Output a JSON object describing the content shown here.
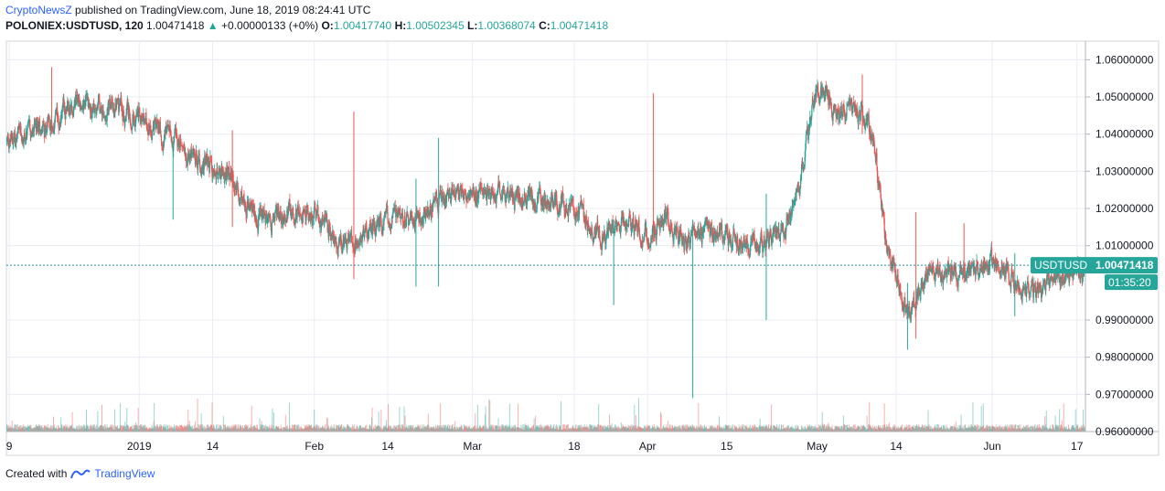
{
  "header": {
    "publisher": "CryptoNewsZ",
    "published_text": "published on TradingView.com, June 18, 2019 08:24:41 UTC",
    "symbol": "POLONIEX:USDTUSD, 120",
    "last": "1.00471418",
    "change": "+0.00000133 (+0%)",
    "open_label": "O:",
    "open": "1.00417740",
    "high_label": "H:",
    "high": "1.00502345",
    "low_label": "L:",
    "low": "1.00368074",
    "close_label": "C:",
    "close": "1.00471418"
  },
  "price_tag": {
    "symbol": "USDTUSD",
    "value": "1.00471418",
    "countdown": "01:35:20"
  },
  "footer": {
    "created_with": "Created with",
    "brand": "TradingView"
  },
  "colors": {
    "up": "#26a69a",
    "down": "#ef5350",
    "grid": "#e9ecf2",
    "axis_text": "#131722",
    "price_line": "#2196a8",
    "tag_bg": "#26a69a"
  },
  "chart_data": {
    "type": "candlestick",
    "ylim": [
      0.96,
      1.065
    ],
    "y_ticks": [
      "1.06000000",
      "1.05000000",
      "1.04000000",
      "1.03000000",
      "1.02000000",
      "1.01000000",
      "0.99000000",
      "0.98000000",
      "0.97000000",
      "0.96000000"
    ],
    "y_tick_values": [
      1.06,
      1.05,
      1.04,
      1.03,
      1.02,
      1.01,
      0.99,
      0.98,
      0.97,
      0.96
    ],
    "x_ticks": [
      "9",
      "2019",
      "14",
      "Feb",
      "14",
      "Mar",
      "18",
      "Apr",
      "15",
      "May",
      "14",
      "Jun",
      "17"
    ],
    "x_tick_days": [
      8,
      31,
      44,
      62,
      75,
      90,
      108,
      121,
      135,
      151,
      165,
      182,
      197
    ],
    "x_range_days": [
      7.5,
      198.5
    ],
    "last_price": 1.00471418,
    "trend": [
      [
        7.5,
        1.038
      ],
      [
        12,
        1.04
      ],
      [
        17,
        1.045
      ],
      [
        20,
        1.05
      ],
      [
        24,
        1.046
      ],
      [
        27,
        1.048
      ],
      [
        31,
        1.044
      ],
      [
        35,
        1.041
      ],
      [
        39,
        1.036
      ],
      [
        43,
        1.032
      ],
      [
        47,
        1.028
      ],
      [
        50,
        1.02
      ],
      [
        53,
        1.016
      ],
      [
        56,
        1.018
      ],
      [
        60,
        1.02
      ],
      [
        63,
        1.016
      ],
      [
        66,
        1.01
      ],
      [
        70,
        1.012
      ],
      [
        74,
        1.016
      ],
      [
        78,
        1.018
      ],
      [
        82,
        1.02
      ],
      [
        86,
        1.022
      ],
      [
        90,
        1.024
      ],
      [
        94,
        1.025
      ],
      [
        98,
        1.023
      ],
      [
        102,
        1.021
      ],
      [
        106,
        1.022
      ],
      [
        109,
        1.019
      ],
      [
        111,
        1.014
      ],
      [
        113,
        1.012
      ],
      [
        116,
        1.017
      ],
      [
        119,
        1.015
      ],
      [
        121,
        1.012
      ],
      [
        124,
        1.018
      ],
      [
        127,
        1.011
      ],
      [
        131,
        1.013
      ],
      [
        135,
        1.012
      ],
      [
        139,
        1.01
      ],
      [
        142,
        1.012
      ],
      [
        145,
        1.014
      ],
      [
        148,
        1.028
      ],
      [
        150,
        1.048
      ],
      [
        152,
        1.052
      ],
      [
        154,
        1.045
      ],
      [
        157,
        1.047
      ],
      [
        159,
        1.045
      ],
      [
        161,
        1.036
      ],
      [
        163,
        1.012
      ],
      [
        165,
        1.0
      ],
      [
        167,
        0.992
      ],
      [
        169,
        0.998
      ],
      [
        171,
        1.005
      ],
      [
        174,
        1.003
      ],
      [
        177,
        1.002
      ],
      [
        180,
        1.005
      ],
      [
        183,
        1.006
      ],
      [
        185,
        1.003
      ],
      [
        187,
        0.997
      ],
      [
        190,
        0.998
      ],
      [
        193,
        1.001
      ],
      [
        196,
        1.002
      ],
      [
        198.5,
        1.004
      ]
    ],
    "spikes": [
      {
        "day": 15.5,
        "high": 1.058,
        "low": 1.04
      },
      {
        "day": 37,
        "high": 1.038,
        "low": 1.017
      },
      {
        "day": 47.5,
        "high": 1.041,
        "low": 1.015
      },
      {
        "day": 69,
        "high": 1.046,
        "low": 1.001
      },
      {
        "day": 80,
        "high": 1.028,
        "low": 0.999
      },
      {
        "day": 84,
        "high": 1.039,
        "low": 0.999
      },
      {
        "day": 115,
        "high": 1.017,
        "low": 0.994
      },
      {
        "day": 122,
        "high": 1.051,
        "low": 1.011
      },
      {
        "day": 129,
        "high": 1.017,
        "low": 0.969
      },
      {
        "day": 142,
        "high": 1.024,
        "low": 0.99
      },
      {
        "day": 159,
        "high": 1.056,
        "low": 1.04
      },
      {
        "day": 167,
        "high": 1.0,
        "low": 0.982
      },
      {
        "day": 168.5,
        "high": 1.019,
        "low": 0.985
      },
      {
        "day": 177,
        "high": 1.016,
        "low": 1.0
      },
      {
        "day": 186,
        "high": 1.008,
        "low": 0.991
      }
    ]
  }
}
